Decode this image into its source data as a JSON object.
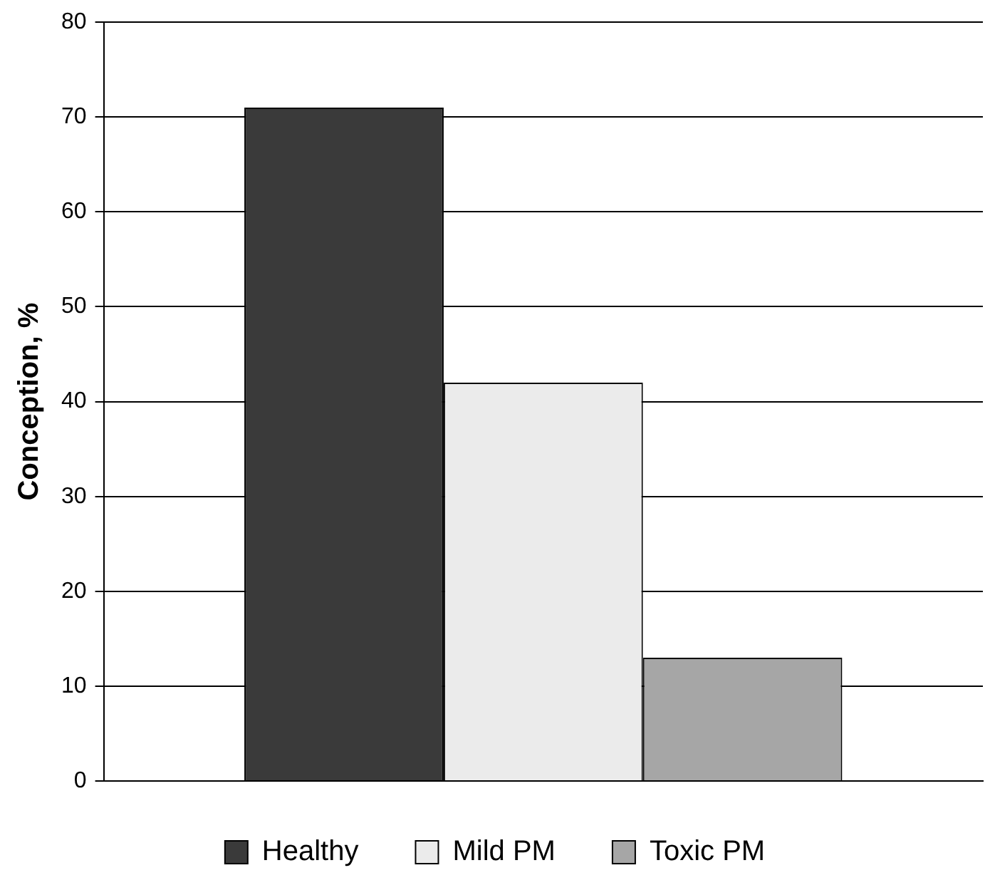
{
  "chart_data": {
    "type": "bar",
    "ylabel": "Conception, %",
    "categories": [
      null
    ],
    "series": [
      {
        "name": "Healthy",
        "color": "#3a3a3a",
        "values": [
          71
        ]
      },
      {
        "name": "Mild PM",
        "color": "#ebebeb",
        "values": [
          42
        ]
      },
      {
        "name": "Toxic PM",
        "color": "#a6a6a6",
        "values": [
          13
        ]
      }
    ],
    "ylim": [
      0,
      80
    ],
    "yticks": [
      0,
      10,
      20,
      30,
      40,
      50,
      60,
      70,
      80
    ],
    "grid": "y",
    "legend": "bottom",
    "tick_labels": "y"
  }
}
